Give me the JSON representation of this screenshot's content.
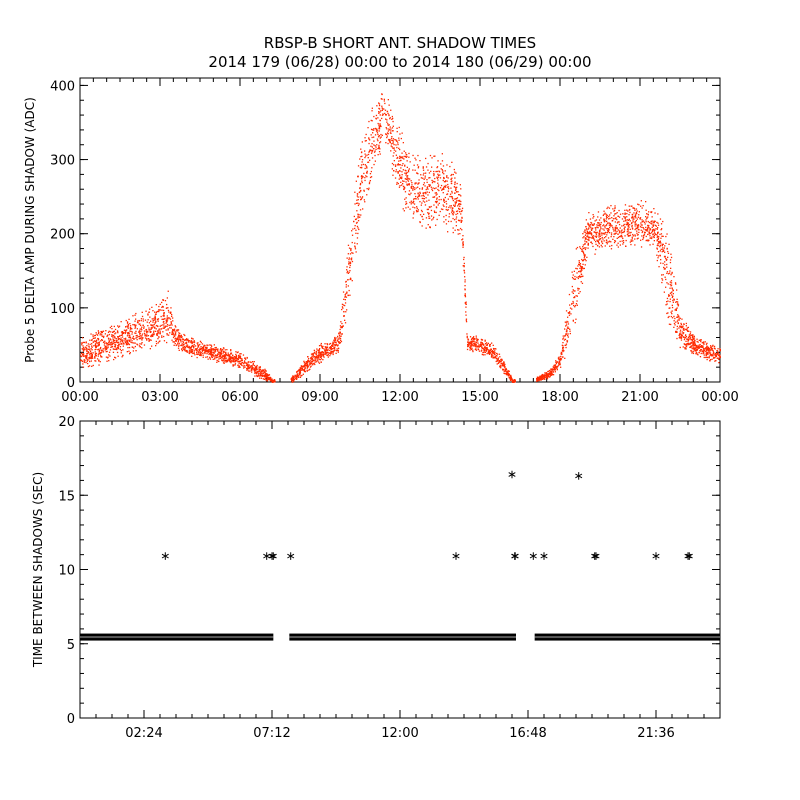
{
  "title_line1": "RBSP-B SHORT ANT. SHADOW TIMES",
  "title_line2": "2014 179 (06/28) 00:00 to 2014 180 (06/29) 00:00",
  "colors": {
    "points_top": "#ff2a00",
    "points_bottom": "#000000",
    "axes": "#000000"
  },
  "chart_data": [
    {
      "type": "scatter",
      "title": "RBSP-B SHORT ANT. SHADOW TIMES",
      "ylabel": "Probe 5 DELTA AMP DURING SHADOW (ADC)",
      "xlabel": "",
      "x_units": "hours",
      "xlim": [
        0,
        24
      ],
      "ylim": [
        0,
        410
      ],
      "x_tick_labels": [
        "00:00",
        "03:00",
        "06:00",
        "09:00",
        "12:00",
        "15:00",
        "18:00",
        "21:00",
        "00:00"
      ],
      "y_tick_labels": [
        "0",
        "100",
        "200",
        "300",
        "400"
      ],
      "y_ticks": [
        0,
        100,
        200,
        300,
        400
      ],
      "grid": false,
      "marker": "dot",
      "envelope": [
        [
          0.0,
          40,
          25
        ],
        [
          0.5,
          45,
          25
        ],
        [
          1.0,
          52,
          25
        ],
        [
          1.5,
          58,
          28
        ],
        [
          2.0,
          65,
          30
        ],
        [
          2.5,
          72,
          32
        ],
        [
          3.0,
          80,
          35
        ],
        [
          3.3,
          90,
          40
        ],
        [
          3.5,
          62,
          18
        ],
        [
          4.0,
          50,
          14
        ],
        [
          5.0,
          40,
          12
        ],
        [
          6.0,
          30,
          12
        ],
        [
          7.0,
          8,
          8
        ],
        [
          7.2,
          2,
          2
        ],
        [
          8.0,
          5,
          5
        ],
        [
          8.5,
          25,
          12
        ],
        [
          9.0,
          40,
          15
        ],
        [
          9.7,
          55,
          15
        ],
        [
          10.0,
          130,
          60
        ],
        [
          10.5,
          270,
          60
        ],
        [
          11.0,
          330,
          55
        ],
        [
          11.4,
          360,
          45
        ],
        [
          12.0,
          290,
          55
        ],
        [
          12.5,
          260,
          55
        ],
        [
          13.0,
          255,
          55
        ],
        [
          13.5,
          260,
          55
        ],
        [
          14.0,
          250,
          50
        ],
        [
          14.3,
          230,
          45
        ],
        [
          14.5,
          55,
          12
        ],
        [
          15.0,
          50,
          12
        ],
        [
          15.5,
          40,
          12
        ],
        [
          16.0,
          15,
          10
        ],
        [
          16.2,
          2,
          2
        ],
        [
          17.2,
          5,
          4
        ],
        [
          17.6,
          12,
          6
        ],
        [
          18.0,
          30,
          12
        ],
        [
          18.5,
          120,
          60
        ],
        [
          19.0,
          200,
          30
        ],
        [
          20.0,
          210,
          35
        ],
        [
          21.0,
          215,
          35
        ],
        [
          21.5,
          210,
          30
        ],
        [
          22.0,
          150,
          70
        ],
        [
          22.5,
          70,
          25
        ],
        [
          23.0,
          50,
          15
        ],
        [
          24.0,
          35,
          12
        ]
      ],
      "gaps": [
        [
          7.3,
          7.9
        ],
        [
          16.3,
          17.1
        ]
      ]
    },
    {
      "type": "scatter",
      "title": "",
      "ylabel": "TIME BETWEEN SHADOWS (SEC)",
      "xlabel": "",
      "x_units": "hours",
      "xlim": [
        0,
        24
      ],
      "ylim": [
        0,
        20
      ],
      "x_tick_labels": [
        "02:24",
        "07:12",
        "12:00",
        "16:48",
        "21:36"
      ],
      "x_ticks": [
        2.4,
        7.2,
        12.0,
        16.8,
        21.6
      ],
      "y_tick_labels": [
        "0",
        "5",
        "10",
        "15",
        "20"
      ],
      "y_ticks": [
        0,
        5,
        10,
        15,
        20
      ],
      "grid": false,
      "marker": "asterisk",
      "baseline_value": 5.45,
      "baseline_segments": [
        [
          0.0,
          7.25
        ],
        [
          7.85,
          16.35
        ],
        [
          17.05,
          24.0
        ]
      ],
      "points": [
        {
          "x": 3.2,
          "y": 10.9
        },
        {
          "x": 7.0,
          "y": 10.9
        },
        {
          "x": 7.2,
          "y": 10.9
        },
        {
          "x": 7.25,
          "y": 10.9
        },
        {
          "x": 7.9,
          "y": 10.9
        },
        {
          "x": 14.1,
          "y": 10.9
        },
        {
          "x": 16.2,
          "y": 16.4
        },
        {
          "x": 16.3,
          "y": 10.9
        },
        {
          "x": 16.32,
          "y": 10.9
        },
        {
          "x": 17.0,
          "y": 10.9
        },
        {
          "x": 17.4,
          "y": 10.9
        },
        {
          "x": 18.7,
          "y": 16.3
        },
        {
          "x": 19.3,
          "y": 10.9
        },
        {
          "x": 19.35,
          "y": 10.9
        },
        {
          "x": 21.6,
          "y": 10.9
        },
        {
          "x": 22.8,
          "y": 10.9
        },
        {
          "x": 22.85,
          "y": 10.9
        }
      ]
    }
  ]
}
